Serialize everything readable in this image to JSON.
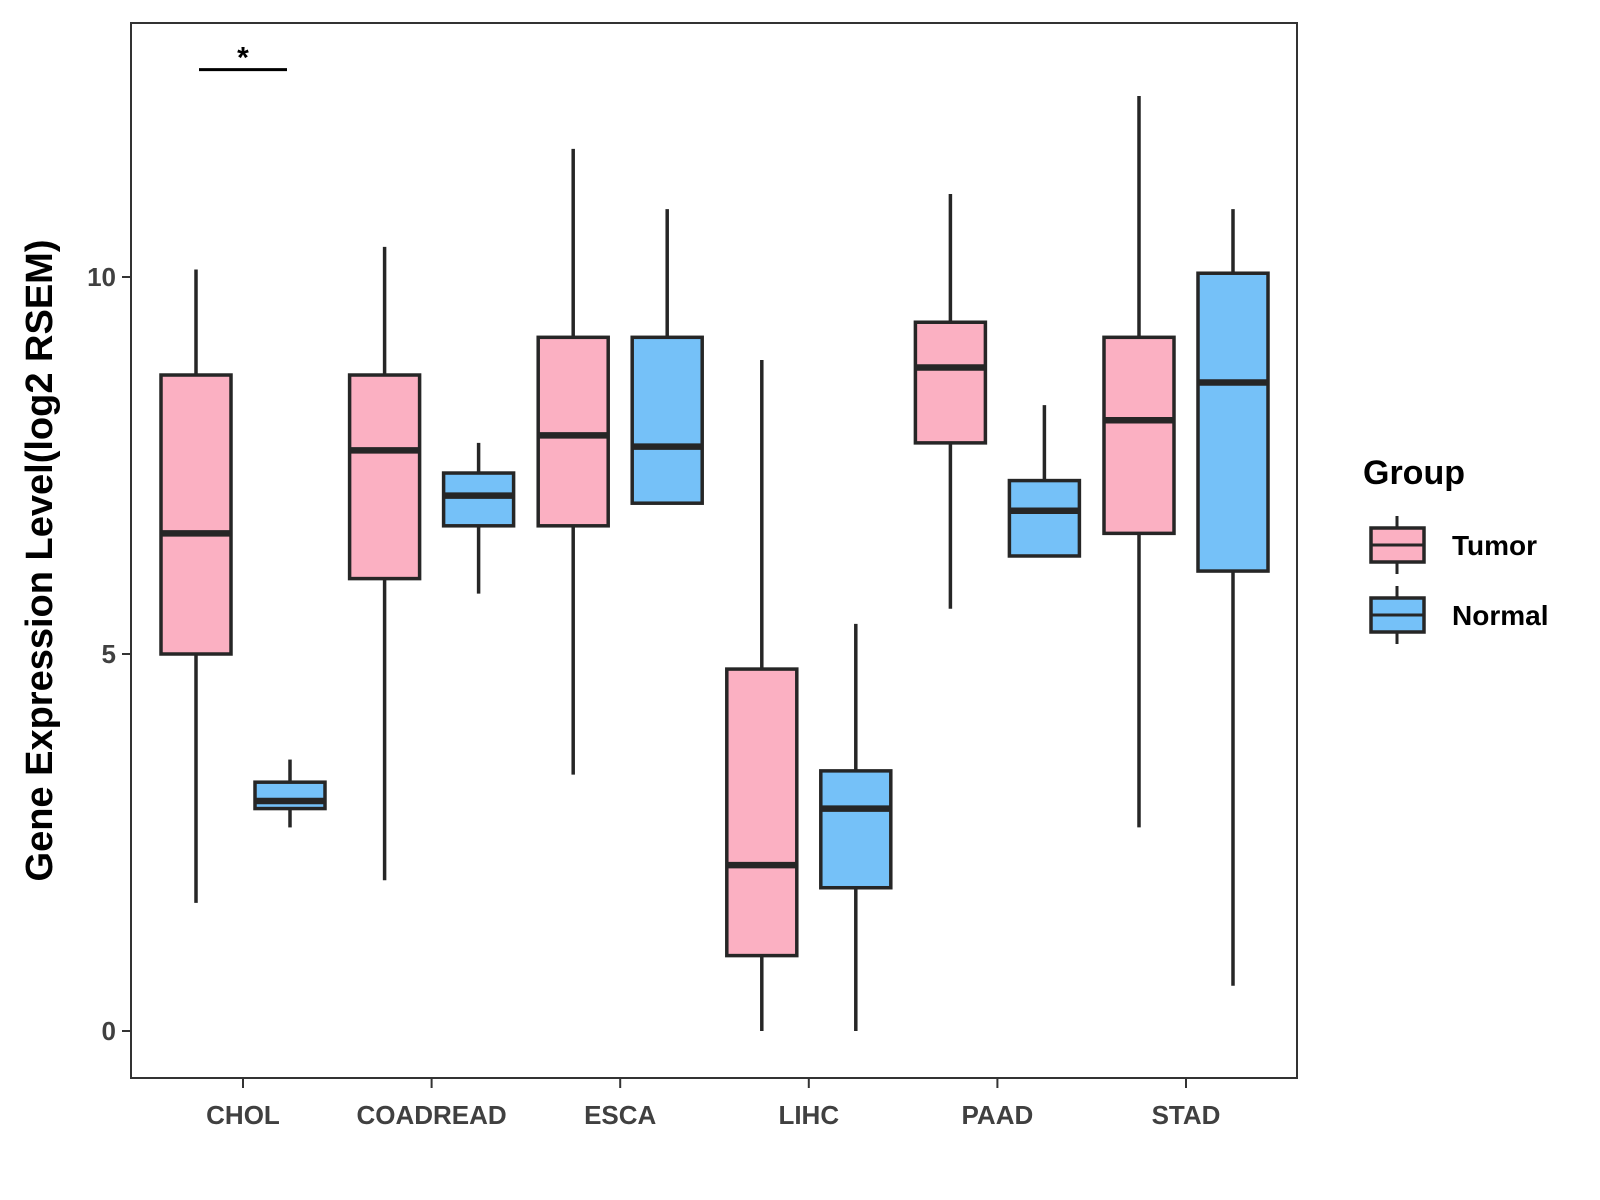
{
  "chart_data": {
    "type": "boxplot",
    "title": "",
    "xlabel": "",
    "ylabel": "Gene Expression Level(log2 RSEM)",
    "ylim": [
      -0.6,
      13.4
    ],
    "yticks": [
      0,
      5,
      10
    ],
    "ytick_labels": [
      "0",
      "5",
      "10"
    ],
    "categories": [
      "CHOL",
      "COADREAD",
      "ESCA",
      "LIHC",
      "PAAD",
      "STAD"
    ],
    "legend": {
      "title": "Group",
      "position": "right",
      "entries": [
        {
          "name": "Tumor",
          "color": "#FBB0C2"
        },
        {
          "name": "Normal",
          "color": "#75C1F8"
        }
      ]
    },
    "series": [
      {
        "name": "Tumor",
        "color": "#FBB0C2",
        "boxes": [
          {
            "min": 1.7,
            "q1": 5.0,
            "median": 6.6,
            "q3": 8.7,
            "max": 10.1
          },
          {
            "min": 2.0,
            "q1": 6.0,
            "median": 7.7,
            "q3": 8.7,
            "max": 10.4
          },
          {
            "min": 3.4,
            "q1": 6.7,
            "median": 7.9,
            "q3": 9.2,
            "max": 11.7
          },
          {
            "min": 0.0,
            "q1": 1.0,
            "median": 2.2,
            "q3": 4.8,
            "max": 8.9
          },
          {
            "min": 5.6,
            "q1": 7.8,
            "median": 8.8,
            "q3": 9.4,
            "max": 11.1
          },
          {
            "min": 2.7,
            "q1": 6.6,
            "median": 8.1,
            "q3": 9.2,
            "max": 12.4
          }
        ]
      },
      {
        "name": "Normal",
        "color": "#75C1F8",
        "boxes": [
          {
            "min": 2.7,
            "q1": 2.95,
            "median": 3.05,
            "q3": 3.3,
            "max": 3.6
          },
          {
            "min": 5.8,
            "q1": 6.7,
            "median": 7.1,
            "q3": 7.4,
            "max": 7.8
          },
          {
            "min": 7.0,
            "q1": 7.0,
            "median": 7.75,
            "q3": 9.2,
            "max": 10.9
          },
          {
            "min": 0.0,
            "q1": 1.9,
            "median": 2.95,
            "q3": 3.45,
            "max": 5.4
          },
          {
            "min": 6.3,
            "q1": 6.3,
            "median": 6.9,
            "q3": 7.3,
            "max": 8.3
          },
          {
            "min": 0.6,
            "q1": 6.1,
            "median": 8.6,
            "q3": 10.05,
            "max": 10.9
          }
        ]
      }
    ],
    "annotations": [
      {
        "category": "CHOL",
        "text": "*",
        "y": 12.75
      }
    ]
  }
}
